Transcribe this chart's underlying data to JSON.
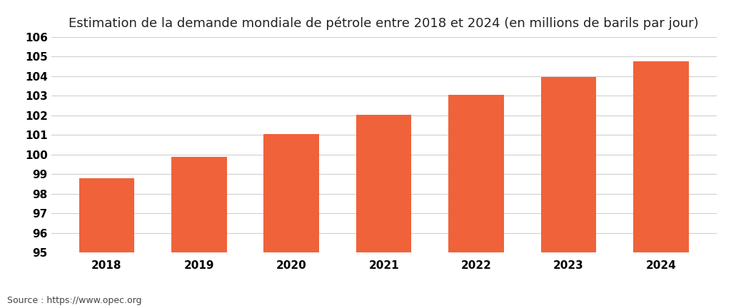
{
  "title": "Estimation de la demande mondiale de pétrole entre 2018 et 2024 (en millions de barils par jour)",
  "categories": [
    "2018",
    "2019",
    "2020",
    "2021",
    "2022",
    "2023",
    "2024"
  ],
  "values": [
    98.79,
    99.87,
    101.03,
    102.03,
    103.05,
    103.95,
    104.75
  ],
  "bar_color": "#F0623A",
  "background_color": "#ffffff",
  "ylim": [
    95,
    106
  ],
  "yticks": [
    95,
    96,
    97,
    98,
    99,
    100,
    101,
    102,
    103,
    104,
    105,
    106
  ],
  "title_fontsize": 13,
  "tick_fontsize": 11,
  "source_text": "Source : https://www.opec.org",
  "source_fontsize": 9,
  "grid_color": "#d0d0d0",
  "bar_width": 0.6
}
